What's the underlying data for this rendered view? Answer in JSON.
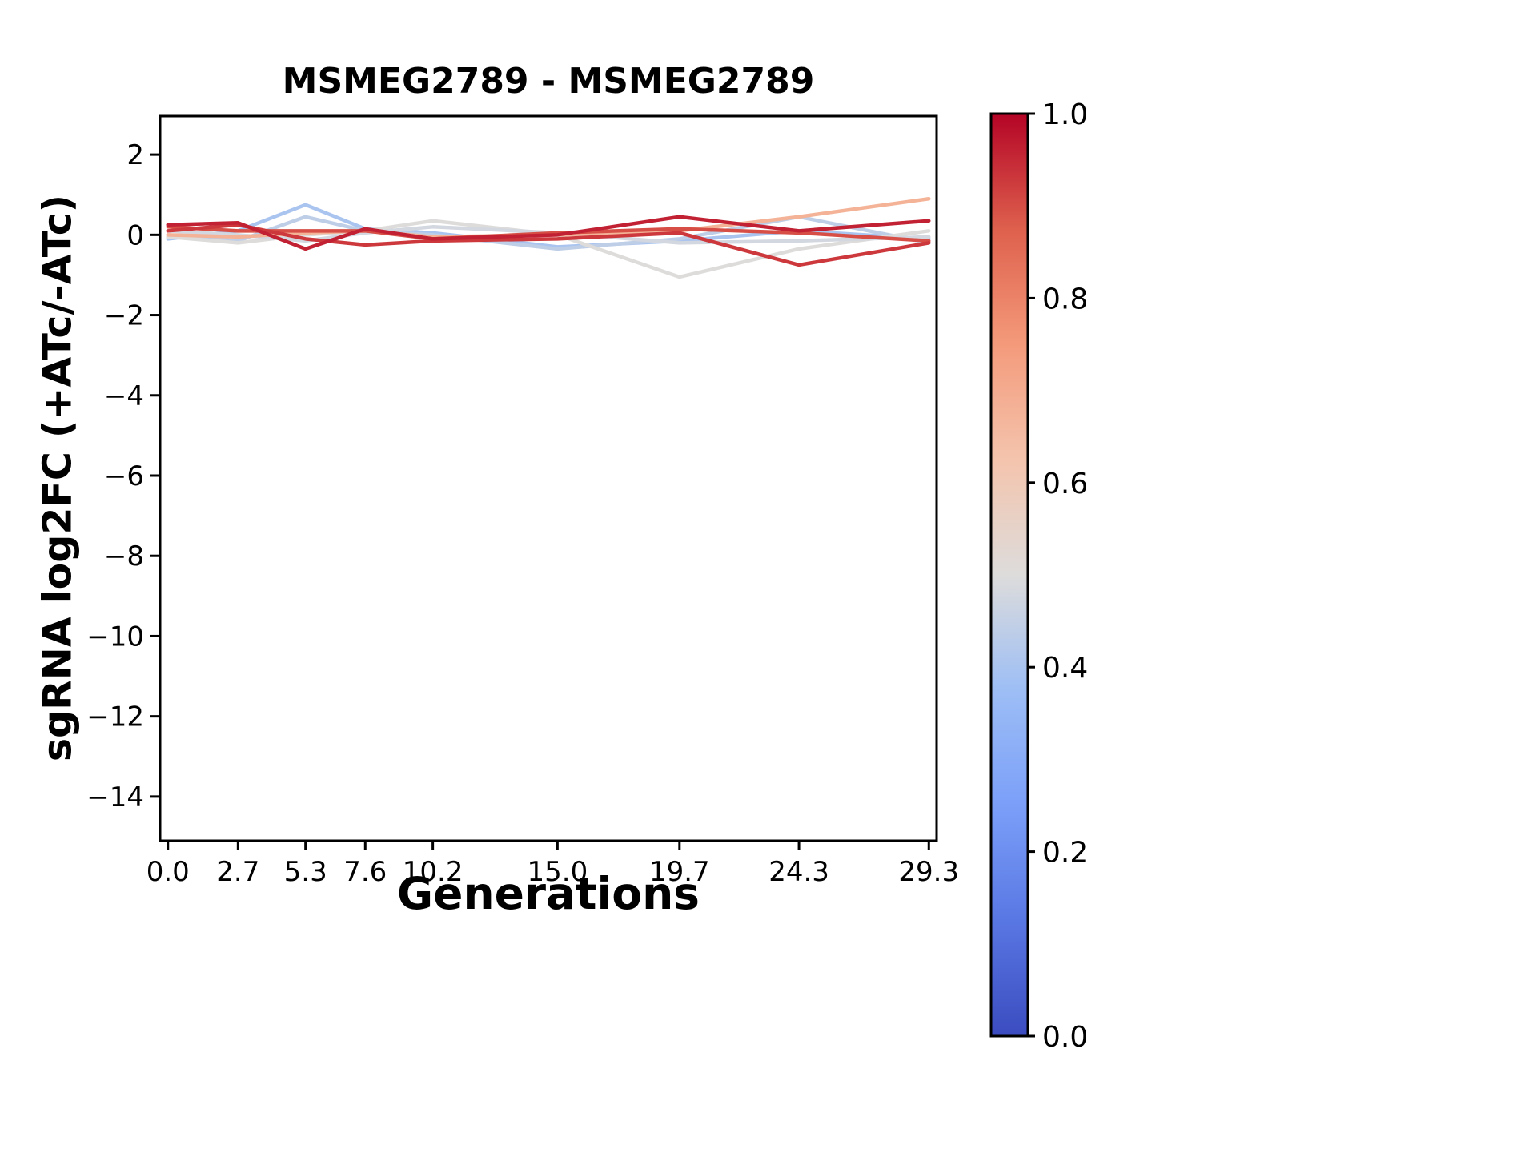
{
  "figure": {
    "background": "#ffffff",
    "axis_color": "#000000",
    "text_color": "#000000"
  },
  "chart_data": {
    "type": "line",
    "title": "MSMEG2789 - MSMEG2789",
    "xlabel": "Generations",
    "ylabel": "sgRNA log2FC (+ATc/-ATc)",
    "x": [
      0.0,
      2.7,
      5.3,
      7.6,
      10.2,
      15.0,
      19.7,
      24.3,
      29.3
    ],
    "xtick_labels": [
      "0.0",
      "2.7",
      "5.3",
      "7.6",
      "10.2",
      "15.0",
      "19.7",
      "24.3",
      "29.3"
    ],
    "yticks": [
      {
        "value": 2,
        "label": "2"
      },
      {
        "value": 0,
        "label": "0"
      },
      {
        "value": -2,
        "label": "−2"
      },
      {
        "value": -4,
        "label": "−4"
      },
      {
        "value": -6,
        "label": "−6"
      },
      {
        "value": -8,
        "label": "−8"
      },
      {
        "value": -10,
        "label": "−10"
      },
      {
        "value": -12,
        "label": "−12"
      },
      {
        "value": -14,
        "label": "−14"
      }
    ],
    "xlim": [
      -0.3,
      29.6
    ],
    "ylim": [
      -15.1,
      2.96
    ],
    "grid": false,
    "legend": "none",
    "colormap": {
      "name": "coolwarm",
      "anchors": [
        {
          "t": 0.0,
          "color": "#3B4CC0"
        },
        {
          "t": 0.125,
          "color": "#5977E3"
        },
        {
          "t": 0.25,
          "color": "#7B9FF9"
        },
        {
          "t": 0.375,
          "color": "#9DBEF5"
        },
        {
          "t": 0.5,
          "color": "#DDDCDB"
        },
        {
          "t": 0.625,
          "color": "#F4C4AD"
        },
        {
          "t": 0.75,
          "color": "#F49A7B"
        },
        {
          "t": 0.875,
          "color": "#DE604D"
        },
        {
          "t": 1.0,
          "color": "#B40426"
        }
      ]
    },
    "colorbar": {
      "min": 0.0,
      "max": 1.0,
      "ticks": [
        {
          "value": 1.0,
          "label": "1.0"
        },
        {
          "value": 0.8,
          "label": "0.8"
        },
        {
          "value": 0.6,
          "label": "0.6"
        },
        {
          "value": 0.4,
          "label": "0.4"
        },
        {
          "value": 0.2,
          "label": "0.2"
        },
        {
          "value": 0.0,
          "label": "0.0"
        }
      ]
    },
    "series": [
      {
        "color_value": 0.4,
        "values": [
          -0.1,
          0.1,
          0.75,
          0.15,
          0.05,
          -0.3,
          -0.15,
          0.1,
          -0.1
        ]
      },
      {
        "color_value": 0.44,
        "values": [
          0.0,
          -0.15,
          0.45,
          0.1,
          0.0,
          -0.35,
          -0.1,
          0.45,
          -0.2
        ]
      },
      {
        "color_value": 0.5,
        "values": [
          -0.05,
          -0.2,
          0.0,
          0.1,
          0.35,
          0.0,
          -1.05,
          -0.35,
          0.1
        ]
      },
      {
        "color_value": 0.48,
        "values": [
          0.1,
          0.0,
          -0.15,
          0.05,
          0.2,
          0.05,
          -0.2,
          -0.15,
          -0.05
        ]
      },
      {
        "color_value": 0.68,
        "values": [
          0.0,
          -0.05,
          0.05,
          0.1,
          -0.05,
          0.0,
          0.1,
          0.45,
          0.9
        ]
      },
      {
        "color_value": 0.9,
        "values": [
          0.2,
          0.1,
          0.1,
          0.1,
          -0.1,
          0.05,
          0.15,
          0.05,
          -0.15
        ]
      },
      {
        "color_value": 0.93,
        "values": [
          0.1,
          0.25,
          -0.1,
          -0.25,
          -0.15,
          -0.1,
          0.05,
          -0.75,
          -0.2
        ]
      },
      {
        "color_value": 0.96,
        "values": [
          0.25,
          0.3,
          -0.35,
          0.15,
          -0.1,
          0.0,
          0.45,
          0.1,
          0.35
        ]
      }
    ]
  }
}
